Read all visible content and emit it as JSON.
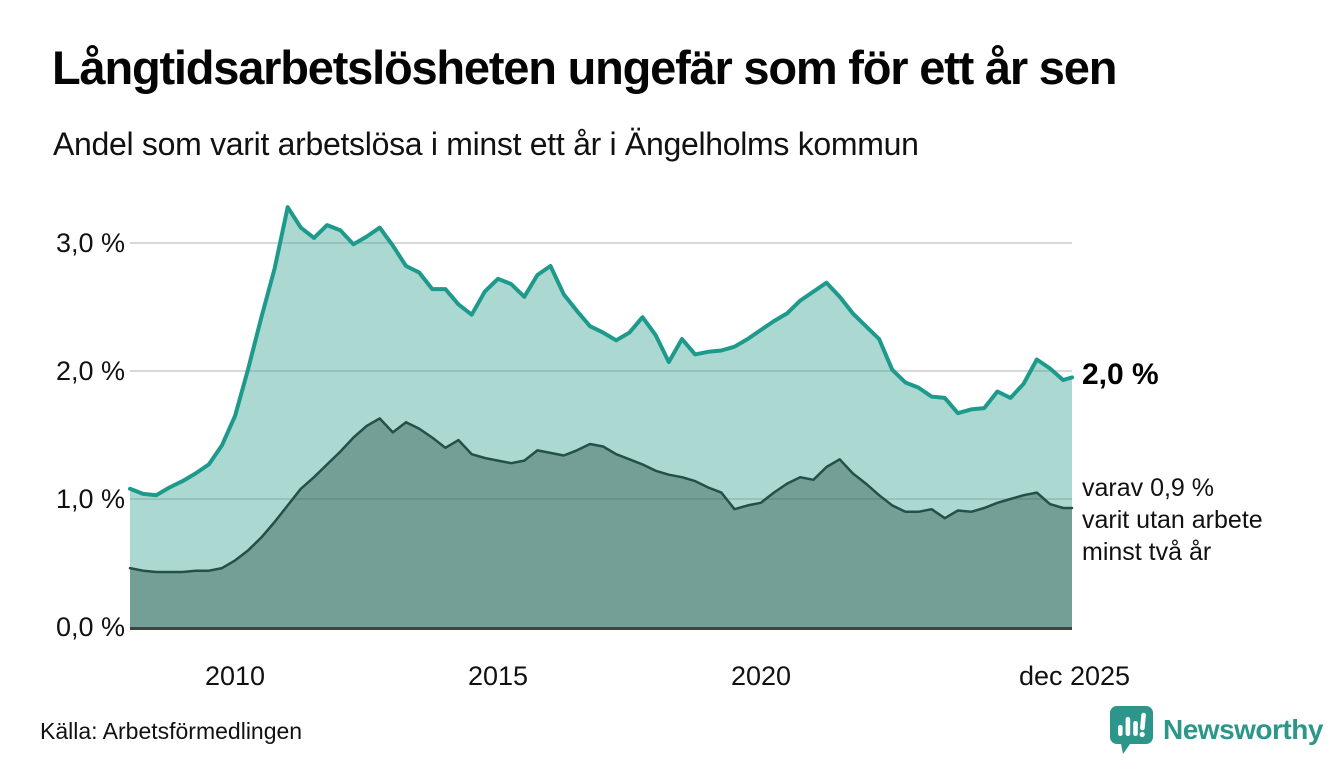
{
  "header": {
    "title": "Långtidsarbetslösheten ungefär som för ett år sen",
    "subtitle": "Andel som varit arbetslösa i minst ett år i Ängelholms kommun"
  },
  "chart_data": {
    "type": "area",
    "title": "Långtidsarbetslösheten ungefär som för ett år sen",
    "subtitle": "Andel som varit arbetslösa i minst ett år i Ängelholms kommun",
    "unit": "%",
    "x_start_year": 2008,
    "x_step_years": 0.25,
    "x_end_year": 2025.92,
    "x_end_label": "dec 2025",
    "y_axis": {
      "min": 0,
      "max": 3.3,
      "gridlines": [
        1,
        2,
        3
      ],
      "ticks": [
        {
          "label": "3,0 %",
          "value": 3
        },
        {
          "label": "2,0 %",
          "value": 2
        },
        {
          "label": "1,0 %",
          "value": 1
        },
        {
          "label": "0,0 %",
          "value": 0
        }
      ]
    },
    "x_axis": {
      "ticks": [
        {
          "label": "2010",
          "year": 2010
        },
        {
          "label": "2015",
          "year": 2015
        },
        {
          "label": "2020",
          "year": 2020
        },
        {
          "label": "dec 2025",
          "year": 2025.92
        }
      ]
    },
    "series": [
      {
        "name": "Andel arbetslösa minst ett år",
        "line_color": "#1d9a8b",
        "fill_color": "rgba(69,169,153,0.45)",
        "line_width": 4,
        "end_value": 2.0,
        "values": [
          1.08,
          1.04,
          1.03,
          1.09,
          1.14,
          1.2,
          1.27,
          1.42,
          1.65,
          2.02,
          2.42,
          2.8,
          3.28,
          3.12,
          3.04,
          3.14,
          3.1,
          2.99,
          3.05,
          3.12,
          2.98,
          2.82,
          2.77,
          2.64,
          2.64,
          2.52,
          2.44,
          2.62,
          2.72,
          2.68,
          2.58,
          2.75,
          2.82,
          2.6,
          2.47,
          2.35,
          2.3,
          2.24,
          2.3,
          2.42,
          2.28,
          2.07,
          2.25,
          2.13,
          2.15,
          2.16,
          2.19,
          2.25,
          2.32,
          2.39,
          2.45,
          2.55,
          2.62,
          2.69,
          2.58,
          2.45,
          2.35,
          2.25,
          2.01,
          1.91,
          1.87,
          1.8,
          1.79,
          1.67,
          1.7,
          1.71,
          1.84,
          1.79,
          1.9,
          2.09,
          2.02,
          1.93,
          1.95
        ]
      },
      {
        "name": "Varav utan arbete minst två år",
        "line_color": "#245046",
        "fill_color": "rgba(40,80,70,0.42)",
        "line_width": 2.5,
        "end_value": 0.9,
        "values": [
          0.46,
          0.44,
          0.43,
          0.43,
          0.43,
          0.44,
          0.44,
          0.46,
          0.52,
          0.6,
          0.7,
          0.82,
          0.95,
          1.08,
          1.17,
          1.27,
          1.37,
          1.48,
          1.57,
          1.63,
          1.52,
          1.6,
          1.55,
          1.48,
          1.4,
          1.46,
          1.35,
          1.32,
          1.3,
          1.28,
          1.3,
          1.38,
          1.36,
          1.34,
          1.38,
          1.43,
          1.41,
          1.35,
          1.31,
          1.27,
          1.22,
          1.19,
          1.17,
          1.14,
          1.09,
          1.05,
          0.92,
          0.95,
          0.97,
          1.05,
          1.12,
          1.17,
          1.15,
          1.25,
          1.31,
          1.2,
          1.12,
          1.03,
          0.95,
          0.9,
          0.9,
          0.92,
          0.85,
          0.91,
          0.9,
          0.93,
          0.97,
          1.0,
          1.03,
          1.05,
          0.96,
          0.93,
          0.93
        ]
      }
    ],
    "annotations": {
      "end_value_label": "2,0 %",
      "secondary_label_lines": [
        "varav 0,9 %",
        "varit utan arbete",
        "minst två år"
      ]
    },
    "layout": {
      "grid_color": "#d8d8d8",
      "axis_color": "#3d453f",
      "legend": "none"
    }
  },
  "footer": {
    "source": "Källa: Arbetsförmedlingen",
    "brand": "Newsworthy",
    "brand_color": "#2c968a",
    "brand_icon": "newsworthy-speech-bubble-bar-chart-icon"
  }
}
